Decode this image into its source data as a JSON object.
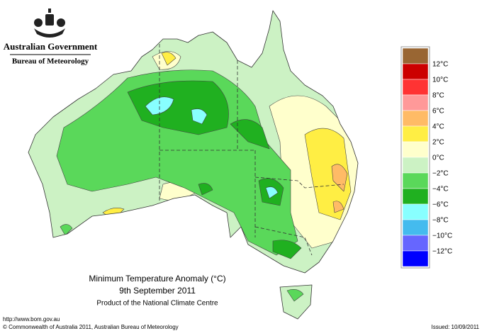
{
  "header": {
    "government": "Australian Government",
    "bureau": "Bureau of Meteorology"
  },
  "legend": {
    "colors": [
      "#996633",
      "#cc0000",
      "#ff3333",
      "#ff9999",
      "#ffbb66",
      "#ffee44",
      "#ffffcc",
      "#ccf2c4",
      "#5ad85a",
      "#20b020",
      "#88ffff",
      "#44bbee",
      "#6666ff",
      "#0000ff"
    ],
    "labels": [
      "12°C",
      "10°C",
      "8°C",
      "6°C",
      "4°C",
      "2°C",
      "0°C",
      "−2°C",
      "−4°C",
      "−6°C",
      "−8°C",
      "−10°C",
      "−12°C"
    ]
  },
  "title": {
    "line1": "Minimum Temperature Anomaly (°C)",
    "line2": "9th September 2011",
    "line3": "Product of the National Climate Centre"
  },
  "footer": {
    "url": "http://www.bom.gov.au",
    "copyright": "© Commonwealth of Australia 2011, Australian Bureau of Meteorology",
    "issued": "Issued: 10/09/2011"
  }
}
